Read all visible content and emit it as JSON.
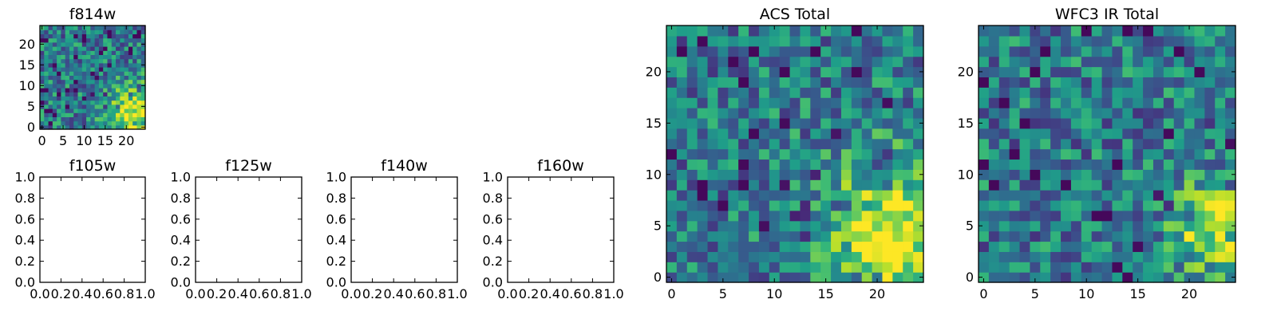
{
  "colormap": "viridis",
  "chart_data": [
    {
      "type": "heatmap",
      "title": "f814w",
      "grid_size": 25,
      "xlim": [
        -0.5,
        24.5
      ],
      "ylim": [
        -0.5,
        24.5
      ],
      "xticks": [
        "0",
        "5",
        "10",
        "15",
        "20"
      ],
      "yticks": [
        "0",
        "5",
        "10",
        "15",
        "20"
      ],
      "seed": 814,
      "bright_center": [
        23,
        3
      ],
      "bright_radius": 5
    },
    {
      "type": "heatmap",
      "title": "f105w",
      "empty": true,
      "xlim": [
        0,
        1
      ],
      "ylim": [
        0,
        1
      ],
      "xticks": [
        "0.0",
        "0.2",
        "0.4",
        "0.6",
        "0.8",
        "1.0"
      ],
      "yticks": [
        "0.0",
        "0.2",
        "0.4",
        "0.6",
        "0.8",
        "1.0"
      ]
    },
    {
      "type": "heatmap",
      "title": "f125w",
      "empty": true,
      "xlim": [
        0,
        1
      ],
      "ylim": [
        0,
        1
      ],
      "xticks": [
        "0.0",
        "0.2",
        "0.4",
        "0.6",
        "0.8",
        "1.0"
      ],
      "yticks": [
        "0.0",
        "0.2",
        "0.4",
        "0.6",
        "0.8",
        "1.0"
      ]
    },
    {
      "type": "heatmap",
      "title": "f140w",
      "empty": true,
      "xlim": [
        0,
        1
      ],
      "ylim": [
        0,
        1
      ],
      "xticks": [
        "0.0",
        "0.2",
        "0.4",
        "0.6",
        "0.8",
        "1.0"
      ],
      "yticks": [
        "0.0",
        "0.2",
        "0.4",
        "0.6",
        "0.8",
        "1.0"
      ]
    },
    {
      "type": "heatmap",
      "title": "f160w",
      "empty": true,
      "xlim": [
        0,
        1
      ],
      "ylim": [
        0,
        1
      ],
      "xticks": [
        "0.0",
        "0.2",
        "0.4",
        "0.6",
        "0.8",
        "1.0"
      ],
      "yticks": [
        "0.0",
        "0.2",
        "0.4",
        "0.6",
        "0.8",
        "1.0"
      ]
    },
    {
      "type": "heatmap",
      "title": "ACS Total",
      "grid_size": 25,
      "xlim": [
        -0.5,
        24.5
      ],
      "ylim": [
        -0.5,
        24.5
      ],
      "xticks": [
        "0",
        "5",
        "10",
        "15",
        "20"
      ],
      "yticks": [
        "0",
        "5",
        "10",
        "15",
        "20"
      ],
      "seed": 101,
      "bright_center": [
        22,
        4
      ],
      "bright_radius": 5
    },
    {
      "type": "heatmap",
      "title": "WFC3 IR Total",
      "grid_size": 25,
      "xlim": [
        -0.5,
        24.5
      ],
      "ylim": [
        -0.5,
        24.5
      ],
      "xticks": [
        "0",
        "5",
        "10",
        "15",
        "20"
      ],
      "yticks": [
        "0",
        "5",
        "10",
        "15",
        "20"
      ],
      "seed": 303,
      "bright_center": [
        23,
        5
      ],
      "bright_radius": 3
    }
  ]
}
